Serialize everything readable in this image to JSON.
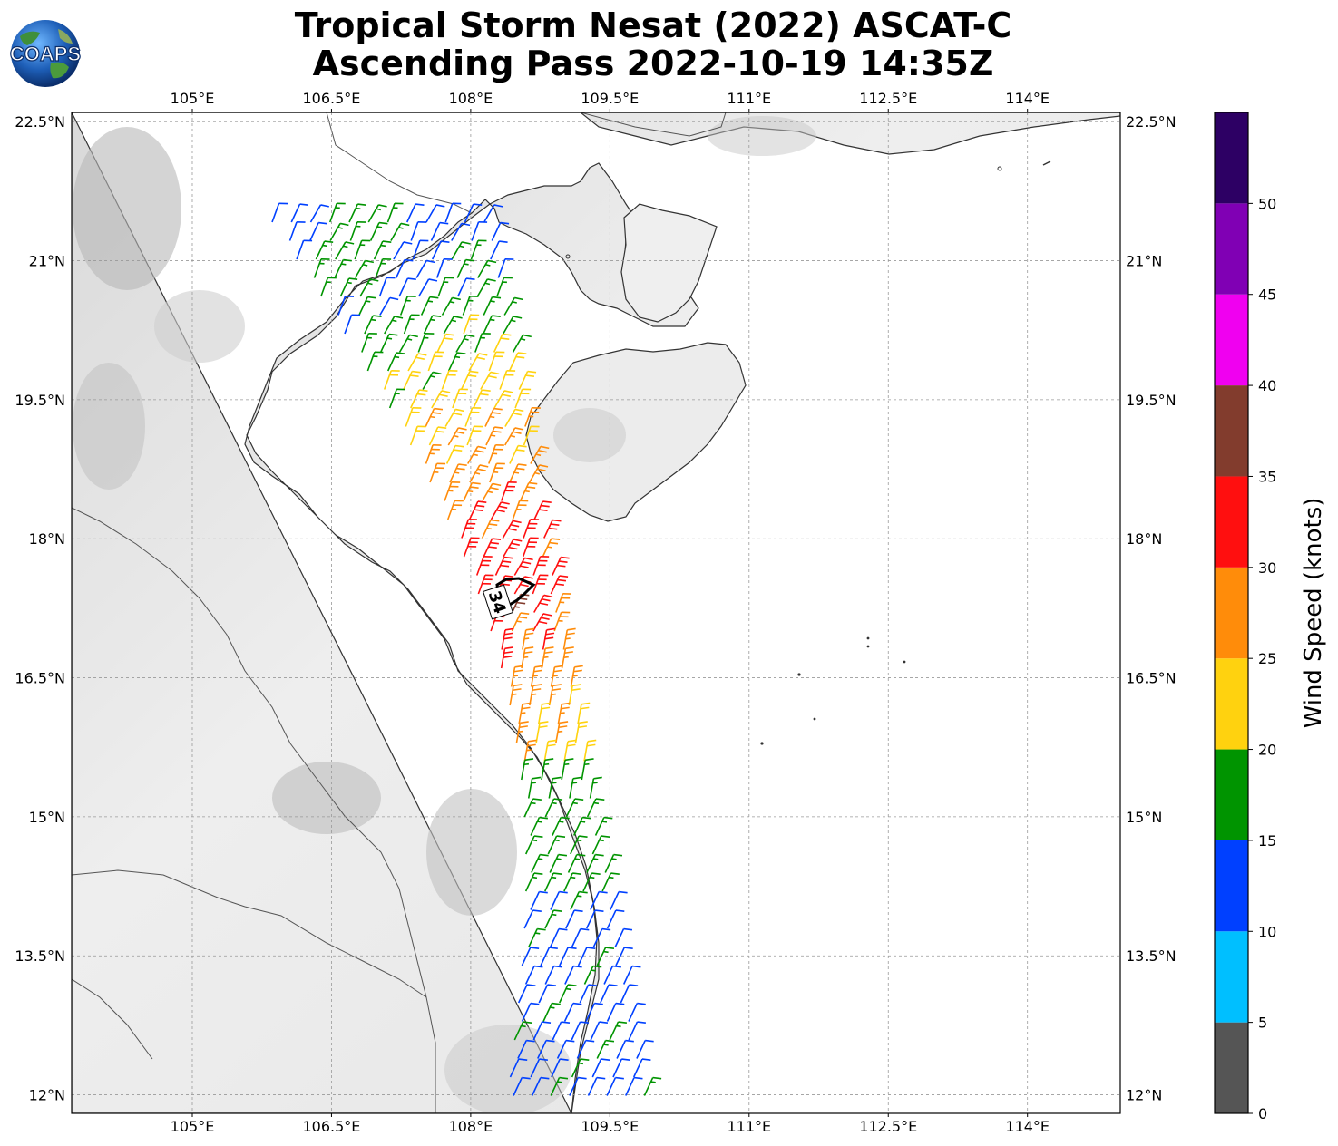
{
  "title": {
    "line1": "Tropical Storm Nesat (2022) ASCAT-C",
    "line2": "Ascending Pass 2022-10-19 14:35Z"
  },
  "logo": {
    "text": "COAPS",
    "icon": "globe-logo-icon"
  },
  "map": {
    "lon_range": [
      103.7,
      115.0
    ],
    "lat_range": [
      11.8,
      22.6
    ],
    "lon_ticks": [
      "105°E",
      "106.5°E",
      "108°E",
      "109.5°E",
      "111°E",
      "112.5°E",
      "114°E"
    ],
    "lon_tick_values": [
      105,
      106.5,
      108,
      109.5,
      111,
      112.5,
      114
    ],
    "lat_ticks": [
      "22.5°N",
      "21°N",
      "19.5°N",
      "18°N",
      "16.5°N",
      "15°N",
      "13.5°N",
      "12°N"
    ],
    "lat_tick_values": [
      22.5,
      21,
      19.5,
      18,
      16.5,
      15,
      13.5,
      12
    ],
    "grid": true,
    "storm_radius_label": "34"
  },
  "colorbar": {
    "label": "Wind Speed (knots)",
    "ticks": [
      "0",
      "5",
      "10",
      "15",
      "20",
      "25",
      "30",
      "35",
      "40",
      "45",
      "50"
    ],
    "colors": [
      "#555555",
      "#00bfff",
      "#0040ff",
      "#009400",
      "#ffd20f",
      "#ff8c0a",
      "#ff0f0f",
      "#823c2d",
      "#f000f0",
      "#8000b4",
      "#2d0064"
    ]
  }
}
